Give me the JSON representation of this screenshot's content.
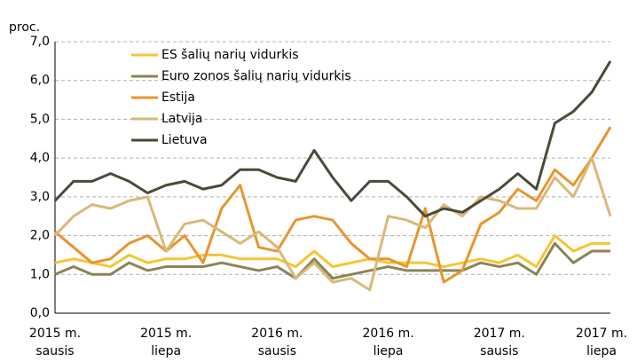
{
  "chart_data": {
    "type": "line",
    "ylabel": "proc.",
    "categories": [
      "2015 m. sausis",
      null,
      null,
      null,
      null,
      null,
      "2015 m. liepa",
      null,
      null,
      null,
      null,
      null,
      "2016 m. sausis",
      null,
      null,
      null,
      null,
      null,
      "2016 m. liepa",
      null,
      null,
      null,
      null,
      null,
      "2017 m. sausis",
      null,
      null,
      null,
      null,
      null,
      "2017 m. liepa"
    ],
    "series": [
      {
        "name": "ES šalių narių vidurkis",
        "color": "#f5c533",
        "values": [
          1.3,
          1.4,
          1.3,
          1.2,
          1.5,
          1.3,
          1.4,
          1.4,
          1.5,
          1.5,
          1.4,
          1.4,
          1.4,
          1.2,
          1.6,
          1.2,
          1.3,
          1.4,
          1.3,
          1.3,
          1.3,
          1.2,
          1.3,
          1.4,
          1.3,
          1.5,
          1.2,
          2.0,
          1.6,
          1.8,
          1.8
        ]
      },
      {
        "name": "Euro zonos šalių narių vidurkis",
        "color": "#8c8456",
        "values": [
          1.0,
          1.2,
          1.0,
          1.0,
          1.3,
          1.1,
          1.2,
          1.2,
          1.2,
          1.3,
          1.2,
          1.1,
          1.2,
          0.9,
          1.4,
          0.9,
          1.0,
          1.1,
          1.2,
          1.1,
          1.1,
          1.1,
          1.1,
          1.3,
          1.2,
          1.3,
          1.0,
          1.8,
          1.3,
          1.6,
          1.6
        ]
      },
      {
        "name": "Estija",
        "color": "#e8952e",
        "values": [
          2.1,
          1.7,
          1.3,
          1.4,
          1.8,
          2.0,
          1.6,
          2.0,
          1.3,
          2.7,
          3.3,
          1.7,
          1.6,
          2.4,
          2.5,
          2.4,
          1.8,
          1.4,
          1.4,
          1.2,
          2.7,
          0.8,
          1.1,
          2.3,
          2.6,
          3.2,
          2.9,
          3.7,
          3.3,
          4.0,
          4.8
        ]
      },
      {
        "name": "Latvija",
        "color": "#d9b878",
        "values": [
          2.0,
          2.5,
          2.8,
          2.7,
          2.9,
          3.0,
          1.6,
          2.3,
          2.4,
          2.1,
          1.8,
          2.1,
          1.7,
          0.9,
          1.3,
          0.8,
          0.9,
          0.6,
          2.5,
          2.4,
          2.2,
          2.8,
          2.5,
          3.0,
          2.9,
          2.7,
          2.7,
          3.5,
          3.0,
          4.0,
          2.5
        ]
      },
      {
        "name": "Lietuva",
        "color": "#4a4a3a",
        "values": [
          2.9,
          3.4,
          3.4,
          3.6,
          3.4,
          3.1,
          3.3,
          3.4,
          3.2,
          3.3,
          3.7,
          3.7,
          3.5,
          3.4,
          4.2,
          3.5,
          2.9,
          3.4,
          3.4,
          3.0,
          2.5,
          2.7,
          2.6,
          2.9,
          3.2,
          3.6,
          3.2,
          4.9,
          5.2,
          5.7,
          6.5
        ]
      }
    ],
    "ylim": [
      0,
      7
    ],
    "yticks": [
      {
        "value": 0,
        "label": "0,0"
      },
      {
        "value": 1,
        "label": "1,0"
      },
      {
        "value": 2,
        "label": "2,0"
      },
      {
        "value": 3,
        "label": "3,0"
      },
      {
        "value": 4,
        "label": "4,0"
      },
      {
        "value": 5,
        "label": "5,0"
      },
      {
        "value": 6,
        "label": "6,0"
      },
      {
        "value": 7,
        "label": "7,0"
      }
    ],
    "grid": true,
    "legend": "top-left"
  }
}
